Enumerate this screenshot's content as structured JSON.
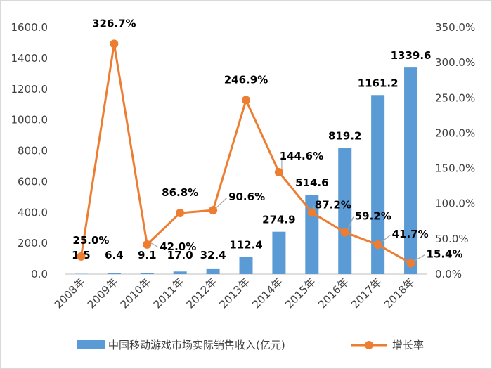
{
  "chart_data": {
    "type": "bar-line-combo",
    "categories": [
      "2008年",
      "2009年",
      "2010年",
      "2011年",
      "2012年",
      "2013年",
      "2014年",
      "2015年",
      "2016年",
      "2017年",
      "2018年"
    ],
    "series": [
      {
        "name": "中国移动游戏市场实际销售收入(亿元)",
        "type": "bar",
        "axis": "left",
        "color": "#5b9bd5",
        "values": [
          1.5,
          6.4,
          9.1,
          17.0,
          32.4,
          112.4,
          274.9,
          514.6,
          819.2,
          1161.2,
          1339.6
        ],
        "labels": [
          "1.5",
          "6.4",
          "9.1",
          "17.0",
          "32.4",
          "112.4",
          "274.9",
          "514.6",
          "819.2",
          "1161.2",
          "1339.6"
        ]
      },
      {
        "name": "增长率",
        "type": "line",
        "axis": "right",
        "color": "#ed7d31",
        "values": [
          null,
          326.7,
          42.0,
          86.8,
          90.6,
          246.9,
          144.6,
          87.2,
          59.2,
          41.7,
          15.4
        ],
        "point_values": [
          25.0,
          326.7,
          42.0,
          86.8,
          90.6,
          246.9,
          144.6,
          87.2,
          59.2,
          41.7,
          15.4
        ],
        "labels": [
          "25.0%",
          "326.7%",
          "42.0%",
          "86.8%",
          "90.6%",
          "246.9%",
          "144.6%",
          "87.2%",
          "59.2%",
          "41.7%",
          "15.4%"
        ]
      }
    ],
    "left_axis": {
      "ylim": [
        0,
        1600
      ],
      "ticks": [
        "0.0",
        "200.0",
        "400.0",
        "600.0",
        "800.0",
        "1000.0",
        "1200.0",
        "1400.0",
        "1600.0"
      ]
    },
    "right_axis": {
      "ylim": [
        0,
        350
      ],
      "ticks": [
        "0.0%",
        "50.0%",
        "100.0%",
        "150.0%",
        "200.0%",
        "250.0%",
        "300.0%",
        "350.0%"
      ]
    },
    "grid": false,
    "legend_placement": "bottom"
  }
}
